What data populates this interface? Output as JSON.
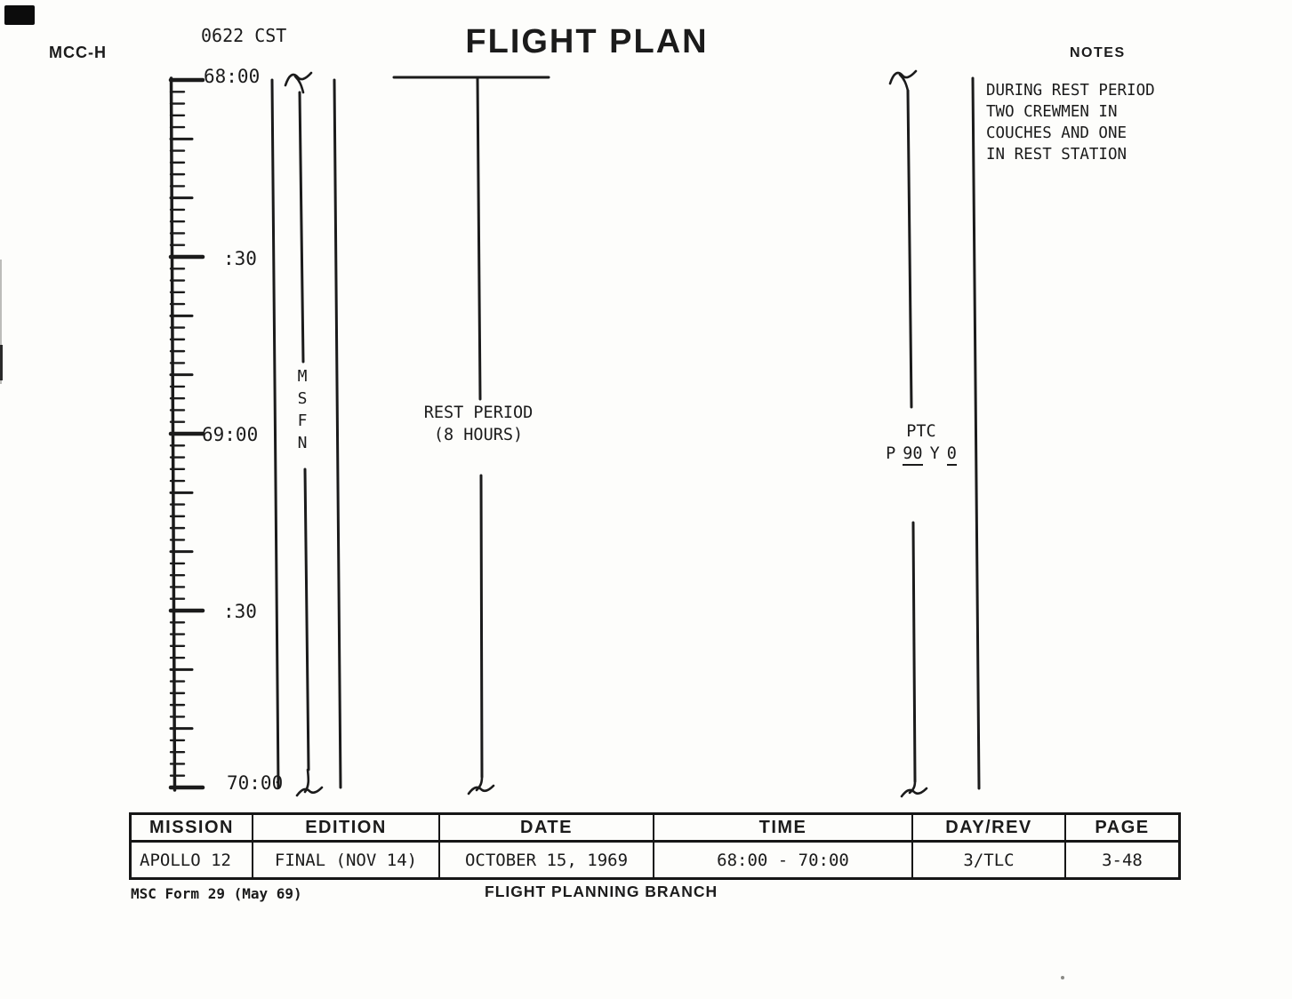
{
  "header": {
    "station": "MCC-H",
    "cst": "0622 CST",
    "title": "FLIGHT PLAN",
    "notes_title": "NOTES"
  },
  "notes": {
    "lines": [
      "DURING REST PERIOD",
      "TWO CREWMEN IN",
      "COUCHES AND ONE",
      "IN REST STATION"
    ]
  },
  "timeline": {
    "start_get": "68:00",
    "end_get": "70:00",
    "tick_labels": [
      "68:00",
      ":30",
      "69:00",
      ":30",
      "70:00"
    ],
    "msfn_letters": [
      "M",
      "S",
      "F",
      "N"
    ],
    "rest_period": {
      "line1": "REST PERIOD",
      "line2": "(8 HOURS)"
    },
    "ptc": {
      "title": "PTC",
      "p_label": "P",
      "pitch": "90",
      "y_label": "Y",
      "yaw": "0"
    }
  },
  "table": {
    "headers": [
      "MISSION",
      "EDITION",
      "DATE",
      "TIME",
      "DAY/REV",
      "PAGE"
    ],
    "values": [
      "APOLLO 12",
      "FINAL (NOV 14)",
      "OCTOBER 15, 1969",
      "68:00 - 70:00",
      "3/TLC",
      "3-48"
    ]
  },
  "footer": {
    "form": "MSC Form 29 (May 69)",
    "branch": "FLIGHT PLANNING BRANCH"
  },
  "ink_color": "#1b1b1b",
  "paper_color": "#fdfdfb"
}
